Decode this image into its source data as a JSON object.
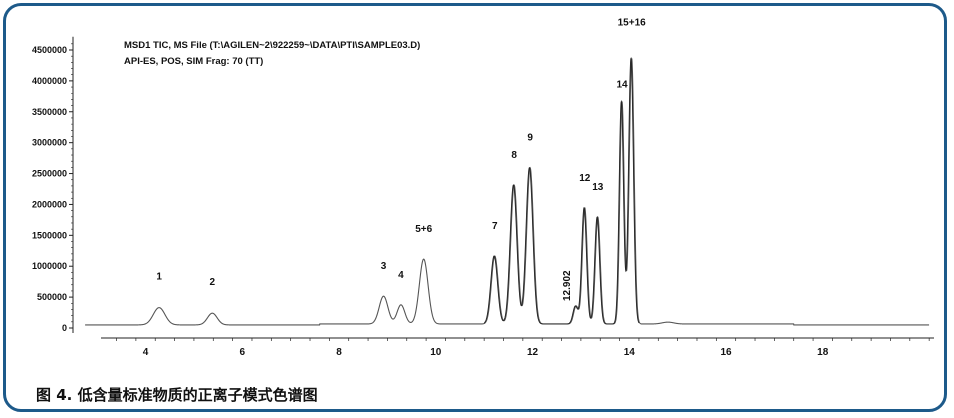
{
  "caption": "图 4. 低含量标准物质的正离子模式色谱图",
  "chart_data": {
    "type": "line",
    "title": "MSD1 TIC, MS File (T:\\AGILEN~2\\922259~\\DATA\\PTI\\SAMPLE03.D)",
    "subtitle": "API-ES, POS, SIM Frag: 70 (TT)",
    "xlabel": "",
    "ylabel": "",
    "xlim": [
      2.5,
      20.3
    ],
    "ylim": [
      -100000,
      4650000
    ],
    "x_ticks": [
      4,
      6,
      8,
      10,
      12,
      14,
      16,
      18
    ],
    "y_ticks": [
      0,
      500000,
      1000000,
      1500000,
      2000000,
      2500000,
      3000000,
      3500000,
      4000000,
      4500000
    ],
    "grid": false,
    "baseline": 50000,
    "peaks": [
      {
        "label": "1",
        "x": 4.28,
        "y": 330000
      },
      {
        "label": "2",
        "x": 5.38,
        "y": 240000
      },
      {
        "label": "3",
        "x": 8.92,
        "y": 500000
      },
      {
        "label": "4",
        "x": 9.28,
        "y": 360000
      },
      {
        "label": "5+6",
        "x": 9.75,
        "y": 1100000
      },
      {
        "label": "7",
        "x": 11.22,
        "y": 1150000
      },
      {
        "label": "8",
        "x": 11.62,
        "y": 2300000
      },
      {
        "label": "9",
        "x": 11.95,
        "y": 2580000
      },
      {
        "label": "12.902",
        "x": 12.9,
        "y": 340000
      },
      {
        "label": "12",
        "x": 13.08,
        "y": 1930000
      },
      {
        "label": "13",
        "x": 13.35,
        "y": 1780000
      },
      {
        "label": "14",
        "x": 13.85,
        "y": 3650000
      },
      {
        "label": "15+16",
        "x": 14.05,
        "y": 4350000
      }
    ]
  }
}
